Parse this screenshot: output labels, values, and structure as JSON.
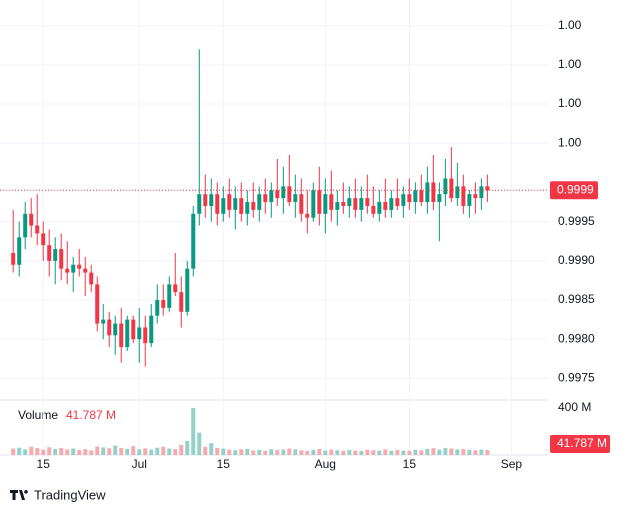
{
  "chart_data": {
    "type": "candlestick",
    "up_color": "#089981",
    "down_color": "#f23645",
    "volume_up_color": "#92d2c8",
    "volume_down_color": "#f7a9ae",
    "open": [
      0.9991,
      0.99895,
      0.9993,
      0.9996,
      0.99945,
      0.99935,
      0.9992,
      0.999,
      0.99915,
      0.9989,
      0.99885,
      0.99895,
      0.9989,
      0.99885,
      0.9987,
      0.9982,
      0.99825,
      0.99805,
      0.9982,
      0.9979,
      0.99825,
      0.998,
      0.99815,
      0.99795,
      0.9983,
      0.9985,
      0.9984,
      0.9987,
      0.9986,
      0.99835,
      0.9989,
      0.9996,
      0.99985,
      0.9997,
      0.99985,
      0.9996,
      0.99985,
      0.99965,
      0.9998,
      0.9996,
      0.99975,
      0.99965,
      0.99985,
      0.99975,
      0.9999,
      0.9998,
      0.99995,
      0.99975,
      0.99985,
      0.9996,
      0.99955,
      0.9999,
      0.9996,
      0.99985,
      0.99965,
      0.99975,
      0.9997,
      0.9998,
      0.99965,
      0.9998,
      0.9997,
      0.9996,
      0.99975,
      0.99965,
      0.9998,
      0.9997,
      0.99985,
      0.99975,
      0.9999,
      0.99975,
      1.0,
      0.99975,
      0.99985,
      1.00005,
      0.9998,
      0.99995,
      0.9997,
      0.99985,
      0.9998,
      0.99995
    ],
    "high": [
      0.99965,
      0.9995,
      0.99975,
      0.9998,
      0.99985,
      0.9995,
      0.9994,
      0.9993,
      0.99935,
      0.99925,
      0.99905,
      0.99915,
      0.99905,
      0.99895,
      0.9988,
      0.99845,
      0.99835,
      0.9983,
      0.9984,
      0.9983,
      0.9983,
      0.9984,
      0.9983,
      0.99845,
      0.9987,
      0.9987,
      0.9988,
      0.9991,
      0.9988,
      0.999,
      0.9997,
      1.0017,
      1.0001,
      1.00005,
      1.0,
      0.99995,
      1.00005,
      0.99995,
      1.0,
      0.9999,
      1.0,
      0.99995,
      1.00005,
      1.0,
      1.0003,
      1.0002,
      1.00035,
      1.0001,
      1.00005,
      0.9999,
      1.0,
      1.0002,
      1.00005,
      1.00015,
      0.9999,
      1.0,
      0.99995,
      1.00005,
      0.99995,
      1.0001,
      0.99995,
      0.9999,
      1.00005,
      0.9999,
      1.00005,
      0.99995,
      1.00005,
      1.0,
      1.0001,
      1.0002,
      1.00035,
      1.0,
      1.0003,
      1.00045,
      1.00025,
      1.0001,
      0.9999,
      1.0,
      1.00005,
      1.0001
    ],
    "low": [
      0.99885,
      0.9988,
      0.99915,
      0.9993,
      0.9992,
      0.999,
      0.9988,
      0.9987,
      0.99875,
      0.9987,
      0.9986,
      0.9988,
      0.99855,
      0.9986,
      0.9981,
      0.998,
      0.9979,
      0.9978,
      0.9977,
      0.99785,
      0.99795,
      0.9977,
      0.99765,
      0.9979,
      0.9982,
      0.9983,
      0.99835,
      0.99855,
      0.99815,
      0.9983,
      0.9988,
      0.99945,
      0.99955,
      0.9995,
      0.99945,
      0.9995,
      0.99955,
      0.9994,
      0.9995,
      0.99945,
      0.99955,
      0.9995,
      0.9996,
      0.99955,
      0.9997,
      0.9996,
      0.9997,
      0.99955,
      0.9995,
      0.99935,
      0.9995,
      0.99945,
      0.99935,
      0.9995,
      0.99945,
      0.9996,
      0.99955,
      0.99955,
      0.9995,
      0.9996,
      0.99955,
      0.9995,
      0.99955,
      0.99955,
      0.99965,
      0.99955,
      0.99965,
      0.9996,
      0.9997,
      0.9996,
      0.99965,
      0.99925,
      0.9997,
      0.99975,
      0.9997,
      0.9996,
      0.99955,
      0.9996,
      0.99965,
      0.99975
    ],
    "close": [
      0.99895,
      0.9993,
      0.9996,
      0.99945,
      0.99935,
      0.9992,
      0.999,
      0.99915,
      0.9989,
      0.99885,
      0.99895,
      0.9989,
      0.99885,
      0.9987,
      0.9982,
      0.99825,
      0.99805,
      0.9982,
      0.9979,
      0.99825,
      0.998,
      0.99815,
      0.99795,
      0.9983,
      0.9985,
      0.9984,
      0.9987,
      0.9986,
      0.99835,
      0.9989,
      0.9996,
      0.99985,
      0.9997,
      0.99985,
      0.9996,
      0.9998,
      0.99965,
      0.9998,
      0.9996,
      0.99975,
      0.99965,
      0.99985,
      0.99975,
      0.9999,
      0.9998,
      0.99995,
      0.99975,
      0.99985,
      0.9996,
      0.99955,
      0.9999,
      0.9996,
      0.99985,
      0.99965,
      0.99975,
      0.9997,
      0.9998,
      0.99965,
      0.9998,
      0.9997,
      0.9996,
      0.99975,
      0.99965,
      0.9998,
      0.9997,
      0.99985,
      0.99975,
      0.9999,
      0.99975,
      1.0,
      0.99975,
      0.99985,
      1.00005,
      0.9998,
      0.99995,
      0.9997,
      0.99985,
      0.9998,
      0.99995,
      0.9999
    ],
    "volume": [
      55,
      62,
      48,
      70,
      58,
      45,
      66,
      52,
      60,
      47,
      55,
      42,
      50,
      38,
      72,
      65,
      58,
      80,
      60,
      52,
      75,
      48,
      56,
      45,
      62,
      70,
      55,
      50,
      85,
      120,
      400,
      190,
      70,
      100,
      60,
      55,
      45,
      40,
      48,
      52,
      38,
      44,
      36,
      50,
      42,
      46,
      55,
      48,
      40,
      35,
      44,
      50,
      38,
      46,
      40,
      36,
      42,
      38,
      34,
      45,
      40,
      37,
      48,
      35,
      42,
      38,
      36,
      44,
      40,
      52,
      58,
      46,
      60,
      55,
      48,
      50,
      44,
      40,
      46,
      41.787
    ],
    "volume_label": "Volume",
    "volume_value_label": "41.787 M",
    "ylim": [
      0.99725,
      1.0022
    ],
    "yticks": [
      0.9975,
      {
        "value": 0.998,
        "label": "0.9980"
      },
      0.9985,
      {
        "value": 0.999,
        "label": "0.9990"
      },
      0.9995,
      {
        "value": 1.0005,
        "label": "1.00"
      },
      {
        "value": 1.001,
        "label": "1.00"
      },
      {
        "value": 1.0015,
        "label": "1.00"
      },
      {
        "value": 1.002,
        "label": "1.00"
      }
    ],
    "volume_ylim": [
      0,
      450
    ],
    "volume_yticks": [
      {
        "value": 400,
        "label": "400 M"
      }
    ],
    "xlim": [
      -2.2,
      89.1
    ],
    "xticks": [
      {
        "value": 5,
        "label": "15"
      },
      {
        "value": 21,
        "label": "Jul"
      },
      {
        "value": 35,
        "label": "15"
      },
      {
        "value": 52,
        "label": "Aug"
      },
      {
        "value": 66,
        "label": "15"
      },
      {
        "value": 83,
        "label": "Sep"
      }
    ],
    "brand": "TradingView"
  }
}
